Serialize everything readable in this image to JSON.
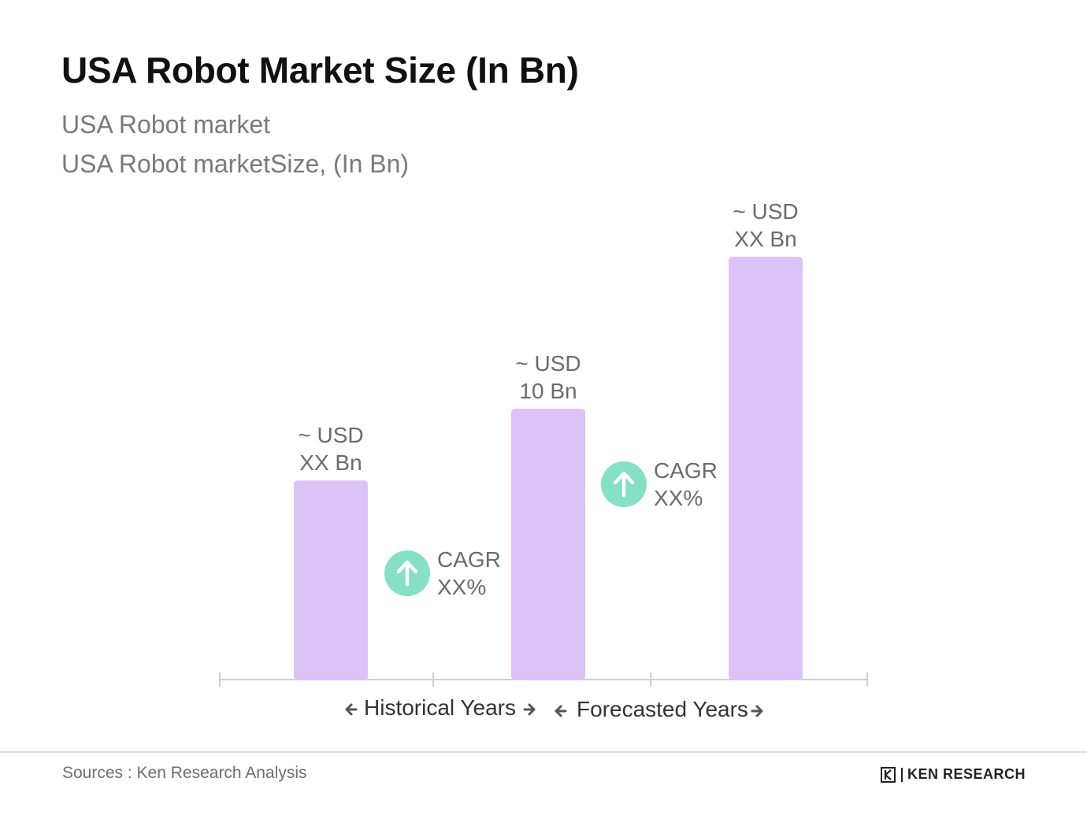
{
  "title": "USA Robot Market Size (In Bn)",
  "subtitle_1": "USA Robot market",
  "subtitle_2": "USA Robot marketSize, (In Bn)",
  "chart_data": {
    "type": "bar",
    "bars": [
      {
        "label_line1": "~ USD",
        "label_line2": "XX Bn",
        "relative_value": 0.47
      },
      {
        "label_line1": "~ USD",
        "label_line2": "10 Bn",
        "relative_value": 0.64
      },
      {
        "label_line1": "~ USD",
        "label_line2": "XX Bn",
        "relative_value": 1.0
      }
    ],
    "cagr": [
      {
        "line1": "CAGR",
        "line2": "XX%"
      },
      {
        "line1": "CAGR",
        "line2": "XX%"
      }
    ],
    "periods": [
      "Historical Years",
      "Forecasted Years"
    ],
    "bar_color": "#dcc3f7",
    "cagr_color": "#86e0c6",
    "axis_color": "#cfcfcf",
    "grid": false,
    "legend": "none"
  },
  "footer": {
    "source": "Sources : Ken Research Analysis",
    "brand": "KEN RESEARCH"
  }
}
